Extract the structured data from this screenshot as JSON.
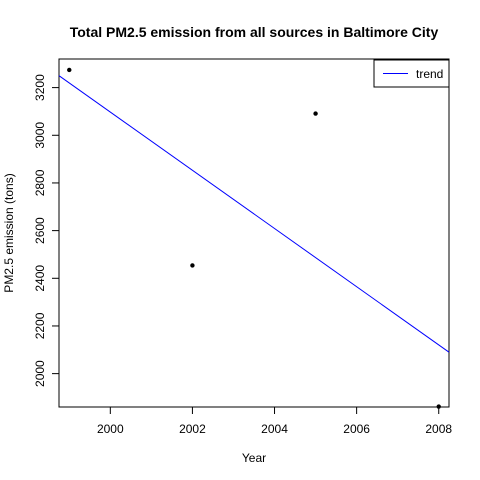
{
  "chart_data": {
    "type": "scatter",
    "title": "Total PM2.5 emission from all sources in Baltimore City",
    "xlabel": "Year",
    "ylabel": "PM2.5 emission (tons)",
    "xlim": [
      1998.75,
      2008.25
    ],
    "ylim": [
      1860,
      3320
    ],
    "x_ticks": [
      2000,
      2002,
      2004,
      2006,
      2008
    ],
    "y_ticks": [
      2000,
      2200,
      2400,
      2600,
      2800,
      3000,
      3200
    ],
    "points": [
      {
        "x": 1999,
        "y": 3274
      },
      {
        "x": 2002,
        "y": 2454
      },
      {
        "x": 2005,
        "y": 3091
      },
      {
        "x": 2008,
        "y": 1862
      }
    ],
    "trend": {
      "name": "trend",
      "color": "#0000ff",
      "x": [
        1998.75,
        2008.25
      ],
      "y": [
        3250,
        2090
      ]
    },
    "legend": {
      "entries": [
        "trend"
      ],
      "placement": "top-right"
    },
    "grid": false,
    "point_color": "#000000"
  }
}
